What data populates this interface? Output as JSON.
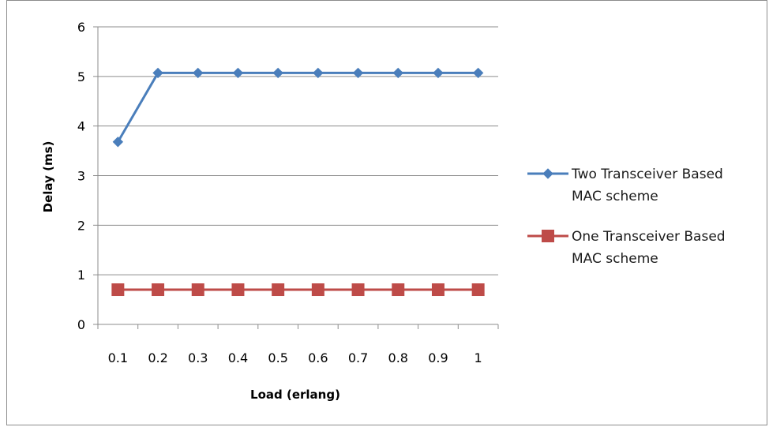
{
  "chart_data": {
    "type": "line",
    "title": "",
    "xlabel": "Load (erlang)",
    "ylabel": "Delay (ms)",
    "categories": [
      "0.1",
      "0.2",
      "0.3",
      "0.4",
      "0.5",
      "0.6",
      "0.7",
      "0.8",
      "0.9",
      "1"
    ],
    "ylim": [
      0,
      6
    ],
    "yticks": [
      "0",
      "1",
      "2",
      "3",
      "4",
      "5",
      "6"
    ],
    "grid": "horizontal",
    "legend_position": "right",
    "series": [
      {
        "name_lines": [
          "Two Transceiver Based",
          "MAC scheme"
        ],
        "values": [
          3.68,
          5.07,
          5.07,
          5.07,
          5.07,
          5.07,
          5.07,
          5.07,
          5.07,
          5.07
        ],
        "color": "#4a7ebb",
        "marker": "diamond"
      },
      {
        "name_lines": [
          "One Transceiver Based",
          "MAC scheme"
        ],
        "values": [
          0.7,
          0.7,
          0.7,
          0.7,
          0.7,
          0.7,
          0.7,
          0.7,
          0.7,
          0.7
        ],
        "color": "#be4b48",
        "marker": "square"
      }
    ]
  }
}
